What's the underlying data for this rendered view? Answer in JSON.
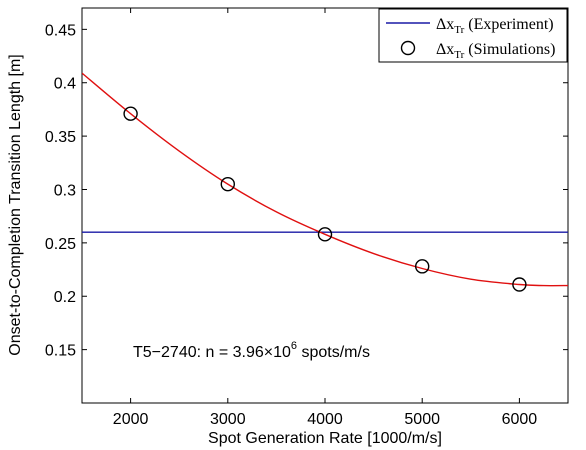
{
  "chart_data": {
    "type": "line",
    "xlabel": "Spot Generation Rate [1000/m/s]",
    "ylabel": "Onset-to-Completion Transition Length [m]",
    "xlim": [
      1500,
      6500
    ],
    "ylim": [
      0.1,
      0.47
    ],
    "xticks": [
      2000,
      3000,
      4000,
      5000,
      6000
    ],
    "yticks": [
      0.15,
      0.2,
      0.25,
      0.3,
      0.35,
      0.4,
      0.45
    ],
    "xtick_labels": [
      "2000",
      "3000",
      "4000",
      "5000",
      "6000"
    ],
    "ytick_labels": [
      "0.15",
      "0.2",
      "0.25",
      "0.3",
      "0.35",
      "0.4",
      "0.45"
    ],
    "grid": false,
    "legend_position": "top-right",
    "series": [
      {
        "name_base": "Δx",
        "name_sub": "Tr",
        "name_suffix": " (Experiment)",
        "kind": "horizontal-line",
        "color": "#1a1aa6",
        "y": 0.26
      },
      {
        "name_base": "Δx",
        "name_sub": "Tr",
        "name_suffix": " (Simulations)",
        "kind": "markers",
        "marker": "open-circle",
        "color": "#000000",
        "x": [
          2000,
          3000,
          4000,
          5000,
          6000
        ],
        "y": [
          0.371,
          0.305,
          0.258,
          0.228,
          0.211
        ]
      },
      {
        "kind": "fit-curve",
        "color": "#e01010",
        "x": [
          1500,
          2000,
          2500,
          3000,
          3500,
          4000,
          4500,
          5000,
          5500,
          6000,
          6250,
          6500
        ],
        "y": [
          0.409,
          0.371,
          0.336,
          0.305,
          0.279,
          0.258,
          0.24,
          0.226,
          0.216,
          0.211,
          0.21,
          0.21
        ]
      }
    ],
    "annotation": {
      "prefix": "T5−2740:  n = 3.96×10",
      "superscript": "6",
      "suffix": " spots/m/s"
    }
  }
}
